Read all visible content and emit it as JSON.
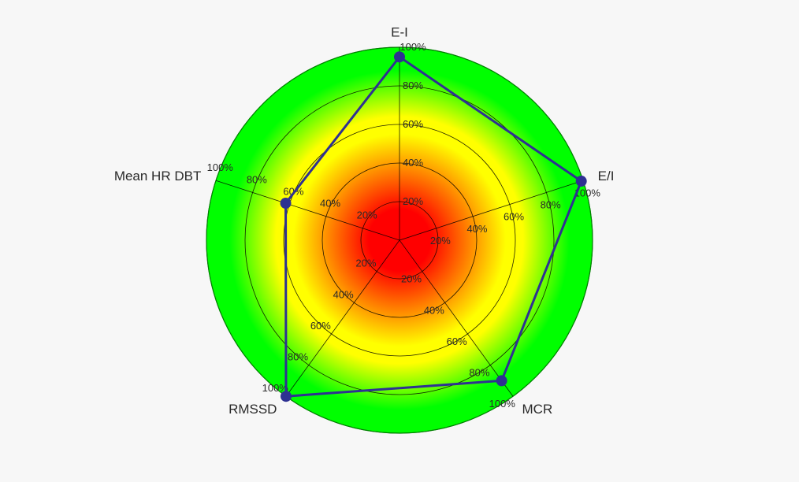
{
  "chart_data": {
    "type": "radar",
    "title": "",
    "axes": [
      "E-I",
      "E/I",
      "MCR",
      "RMSSD",
      "Mean HR DBT"
    ],
    "tick_labels": [
      "20%",
      "40%",
      "60%",
      "80%",
      "100%"
    ],
    "range": [
      0,
      100
    ],
    "series": [
      {
        "values": [
          95,
          99,
          90,
          100,
          62
        ]
      }
    ],
    "colors": {
      "series_line": "#2e3192",
      "series_marker": "#2e3192",
      "gradient_center": "#ff0000",
      "gradient_mid": "#ffff00",
      "gradient_outer": "#00ff00",
      "grid": "#000000",
      "outer_ring": "#008000"
    }
  }
}
